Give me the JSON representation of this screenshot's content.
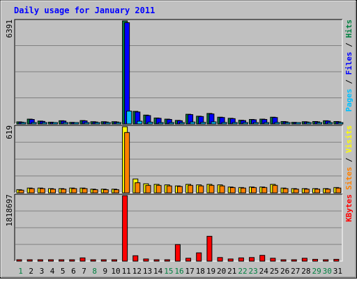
{
  "chart_data": {
    "type": "bar",
    "title": "Daily usage for January 2011",
    "categories": [
      "1",
      "2",
      "3",
      "4",
      "5",
      "6",
      "7",
      "8",
      "9",
      "10",
      "11",
      "12",
      "13",
      "14",
      "15",
      "16",
      "17",
      "18",
      "19",
      "20",
      "21",
      "22",
      "23",
      "24",
      "25",
      "26",
      "27",
      "28",
      "29",
      "30",
      "31"
    ],
    "weekend_days": [
      "1",
      "8",
      "15",
      "16",
      "22",
      "23",
      "29",
      "30"
    ],
    "panels": [
      {
        "name": "hits-files-pages",
        "max_label": "6391",
        "ylim": [
          0,
          6391
        ],
        "legend": [
          {
            "text": "Pages",
            "color": "#00C0FF"
          },
          {
            "text": " / ",
            "color": "#000000"
          },
          {
            "text": "Files",
            "color": "#0000FF"
          },
          {
            "text": " / ",
            "color": "#000000"
          },
          {
            "text": "Hits",
            "color": "#008040"
          }
        ],
        "series": [
          {
            "name": "Hits",
            "color": "#008040",
            "values": [
              130,
              300,
              180,
              110,
              200,
              100,
              210,
              140,
              140,
              140,
              6391,
              780,
              550,
              370,
              300,
              220,
              600,
              480,
              650,
              420,
              350,
              230,
              280,
              300,
              420,
              150,
              100,
              140,
              150,
              200,
              150
            ]
          },
          {
            "name": "Files",
            "color": "#0000FF",
            "values": [
              110,
              280,
              160,
              90,
              180,
              80,
              190,
              120,
              120,
              120,
              6280,
              740,
              520,
              350,
              280,
              200,
              580,
              460,
              620,
              400,
              330,
              210,
              260,
              280,
              400,
              130,
              80,
              120,
              130,
              180,
              130
            ]
          },
          {
            "name": "Pages",
            "color": "#00C0FF",
            "values": [
              30,
              60,
              40,
              20,
              40,
              20,
              40,
              30,
              30,
              30,
              800,
              170,
              110,
              80,
              70,
              50,
              120,
              100,
              130,
              90,
              70,
              50,
              60,
              60,
              90,
              30,
              20,
              30,
              30,
              40,
              30
            ]
          }
        ]
      },
      {
        "name": "visits-sites",
        "max_label": "619",
        "ylim": [
          0,
          619
        ],
        "legend": [
          {
            "text": "Sites",
            "color": "#FF8000"
          },
          {
            "text": " / ",
            "color": "#000000"
          },
          {
            "text": "Visits",
            "color": "#FFFF00"
          }
        ],
        "series": [
          {
            "name": "Visits",
            "color": "#FFFF00",
            "values": [
              30,
              45,
              45,
              40,
              40,
              45,
              45,
              35,
              35,
              35,
              619,
              130,
              85,
              80,
              75,
              65,
              80,
              75,
              80,
              75,
              55,
              50,
              55,
              55,
              80,
              45,
              40,
              40,
              40,
              40,
              50
            ]
          },
          {
            "name": "Sites",
            "color": "#FF8000",
            "values": [
              25,
              40,
              40,
              35,
              35,
              40,
              40,
              30,
              30,
              30,
              565,
              95,
              70,
              70,
              65,
              60,
              70,
              65,
              70,
              65,
              50,
              45,
              50,
              50,
              70,
              40,
              35,
              35,
              35,
              35,
              45
            ]
          }
        ]
      },
      {
        "name": "kbytes",
        "max_label": "1818697",
        "ylim": [
          0,
          1818697
        ],
        "legend": [
          {
            "text": "KBytes",
            "color": "#FF0000"
          }
        ],
        "series": [
          {
            "name": "KBytes",
            "color": "#FF0000",
            "values": [
              20000,
              20000,
              20000,
              20000,
              20000,
              20000,
              90000,
              20000,
              20000,
              20000,
              1818697,
              150000,
              60000,
              30000,
              20000,
              460000,
              80000,
              230000,
              690000,
              100000,
              60000,
              90000,
              100000,
              160000,
              80000,
              30000,
              30000,
              80000,
              50000,
              30000,
              50000
            ]
          }
        ]
      }
    ],
    "colors": {
      "title": "#0000FF",
      "background": "#C0C0C0",
      "weekday_label": "#000000",
      "weekend_label": "#008040",
      "grid": "#808080"
    }
  }
}
